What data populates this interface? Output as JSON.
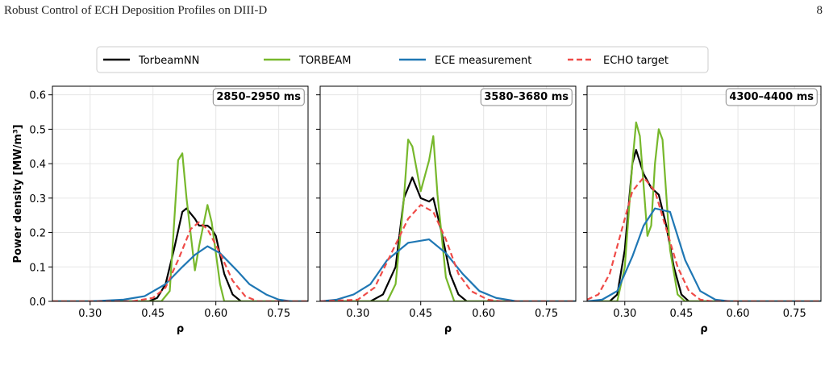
{
  "header": {
    "title": "Robust Control of ECH Deposition Profiles on DIII-D",
    "page": "8"
  },
  "chart_data": [
    {
      "type": "line",
      "annotation": "2850–2950 ms",
      "xlabel": "ρ",
      "ylabel": "Power density [MW/m³]",
      "xlim": [
        0.21,
        0.82
      ],
      "ylim": [
        0,
        0.625
      ],
      "xticks": [
        {
          "value": 0.3,
          "label": "0.30"
        },
        0.45,
        {
          "value": 0.6,
          "label": "0.60"
        },
        0.75
      ],
      "yticks": [
        {
          "value": 0,
          "label": "0.0"
        },
        0.1,
        0.2,
        0.3,
        0.4,
        0.5,
        0.6
      ],
      "ytick_labels": true,
      "grid": true,
      "series": [
        {
          "name": "TorbeamNN",
          "color": "#000000",
          "dash": false,
          "x": [
            0.21,
            0.44,
            0.46,
            0.48,
            0.5,
            0.52,
            0.53,
            0.55,
            0.56,
            0.58,
            0.59,
            0.6,
            0.62,
            0.64,
            0.66,
            0.82
          ],
          "values": [
            0,
            0,
            0.01,
            0.05,
            0.15,
            0.26,
            0.27,
            0.24,
            0.22,
            0.22,
            0.21,
            0.19,
            0.08,
            0.02,
            0,
            0
          ]
        },
        {
          "name": "TORBEAM",
          "color": "#77b82c",
          "dash": false,
          "x": [
            0.21,
            0.47,
            0.49,
            0.51,
            0.52,
            0.53,
            0.55,
            0.56,
            0.58,
            0.59,
            0.61,
            0.62,
            0.82
          ],
          "values": [
            0,
            0,
            0.03,
            0.41,
            0.43,
            0.3,
            0.09,
            0.16,
            0.28,
            0.23,
            0.05,
            0,
            0
          ]
        },
        {
          "name": "ECE measurement",
          "color": "#1f77b4",
          "dash": false,
          "x": [
            0.21,
            0.3,
            0.38,
            0.43,
            0.48,
            0.52,
            0.55,
            0.58,
            0.61,
            0.65,
            0.68,
            0.72,
            0.75,
            0.78,
            0.82
          ],
          "values": [
            0,
            0,
            0.005,
            0.015,
            0.05,
            0.1,
            0.135,
            0.16,
            0.14,
            0.09,
            0.05,
            0.02,
            0.005,
            0,
            0
          ]
        },
        {
          "name": "ECHO target",
          "color": "#ef4b48",
          "dash": true,
          "x": [
            0.21,
            0.4,
            0.45,
            0.48,
            0.51,
            0.54,
            0.56,
            0.58,
            0.61,
            0.64,
            0.67,
            0.7,
            0.82
          ],
          "values": [
            0,
            0,
            0.01,
            0.04,
            0.12,
            0.21,
            0.23,
            0.21,
            0.14,
            0.06,
            0.015,
            0,
            0
          ]
        }
      ]
    },
    {
      "type": "line",
      "annotation": "3580–3680 ms",
      "xlabel": "ρ",
      "xlim": [
        0.21,
        0.82
      ],
      "ylim": [
        0,
        0.625
      ],
      "xticks": [
        {
          "value": 0.3,
          "label": "0.30"
        },
        0.45,
        {
          "value": 0.6,
          "label": "0.60"
        },
        0.75
      ],
      "yticks": [
        0,
        0.1,
        0.2,
        0.3,
        0.4,
        0.5,
        0.6
      ],
      "ytick_labels": false,
      "grid": true,
      "series": [
        {
          "color": "#000000",
          "dash": false,
          "x": [
            0.21,
            0.33,
            0.36,
            0.39,
            0.41,
            0.43,
            0.44,
            0.45,
            0.47,
            0.48,
            0.5,
            0.52,
            0.54,
            0.56,
            0.82
          ],
          "values": [
            0,
            0,
            0.02,
            0.1,
            0.3,
            0.36,
            0.33,
            0.3,
            0.29,
            0.3,
            0.2,
            0.08,
            0.02,
            0,
            0
          ]
        },
        {
          "color": "#77b82c",
          "dash": false,
          "x": [
            0.21,
            0.37,
            0.39,
            0.41,
            0.42,
            0.43,
            0.45,
            0.47,
            0.48,
            0.49,
            0.51,
            0.53,
            0.82
          ],
          "values": [
            0,
            0,
            0.05,
            0.3,
            0.47,
            0.45,
            0.32,
            0.41,
            0.48,
            0.31,
            0.07,
            0,
            0
          ]
        },
        {
          "color": "#1f77b4",
          "dash": false,
          "x": [
            0.21,
            0.25,
            0.29,
            0.33,
            0.37,
            0.42,
            0.47,
            0.51,
            0.55,
            0.59,
            0.63,
            0.68,
            0.82
          ],
          "values": [
            0,
            0.005,
            0.02,
            0.05,
            0.12,
            0.17,
            0.18,
            0.14,
            0.08,
            0.03,
            0.01,
            0,
            0
          ]
        },
        {
          "color": "#ef4b48",
          "dash": true,
          "x": [
            0.21,
            0.3,
            0.34,
            0.38,
            0.42,
            0.45,
            0.48,
            0.51,
            0.54,
            0.57,
            0.61,
            0.64,
            0.82
          ],
          "values": [
            0,
            0.005,
            0.04,
            0.14,
            0.24,
            0.28,
            0.26,
            0.18,
            0.08,
            0.03,
            0.005,
            0,
            0
          ]
        }
      ]
    },
    {
      "type": "line",
      "annotation": "4300–4400 ms",
      "xlabel": "ρ",
      "xlim": [
        0.2,
        0.82
      ],
      "ylim": [
        0,
        0.625
      ],
      "xticks": [
        {
          "value": 0.3,
          "label": "0.30"
        },
        0.45,
        {
          "value": 0.6,
          "label": "0.60"
        },
        0.75
      ],
      "yticks": [
        0,
        0.1,
        0.2,
        0.3,
        0.4,
        0.5,
        0.6
      ],
      "ytick_labels": false,
      "grid": true,
      "series": [
        {
          "color": "#000000",
          "dash": false,
          "x": [
            0.2,
            0.26,
            0.28,
            0.3,
            0.32,
            0.33,
            0.35,
            0.37,
            0.39,
            0.41,
            0.43,
            0.45,
            0.47,
            0.82
          ],
          "values": [
            0,
            0,
            0.02,
            0.15,
            0.4,
            0.44,
            0.37,
            0.33,
            0.31,
            0.22,
            0.1,
            0.02,
            0,
            0
          ]
        },
        {
          "color": "#77b82c",
          "dash": false,
          "x": [
            0.2,
            0.28,
            0.3,
            0.32,
            0.33,
            0.34,
            0.36,
            0.37,
            0.38,
            0.39,
            0.4,
            0.42,
            0.44,
            0.46,
            0.82
          ],
          "values": [
            0,
            0,
            0.1,
            0.4,
            0.52,
            0.48,
            0.19,
            0.22,
            0.4,
            0.5,
            0.47,
            0.15,
            0.02,
            0,
            0
          ]
        },
        {
          "color": "#1f77b4",
          "dash": false,
          "x": [
            0.2,
            0.24,
            0.28,
            0.32,
            0.35,
            0.38,
            0.42,
            0.46,
            0.5,
            0.54,
            0.58,
            0.82
          ],
          "values": [
            0,
            0.005,
            0.03,
            0.13,
            0.22,
            0.27,
            0.26,
            0.12,
            0.03,
            0.005,
            0,
            0
          ]
        },
        {
          "color": "#ef4b48",
          "dash": true,
          "x": [
            0.2,
            0.23,
            0.26,
            0.29,
            0.32,
            0.35,
            0.38,
            0.41,
            0.44,
            0.47,
            0.5,
            0.53,
            0.82
          ],
          "values": [
            0.005,
            0.02,
            0.08,
            0.2,
            0.32,
            0.36,
            0.32,
            0.21,
            0.1,
            0.03,
            0.005,
            0,
            0
          ]
        }
      ]
    }
  ]
}
